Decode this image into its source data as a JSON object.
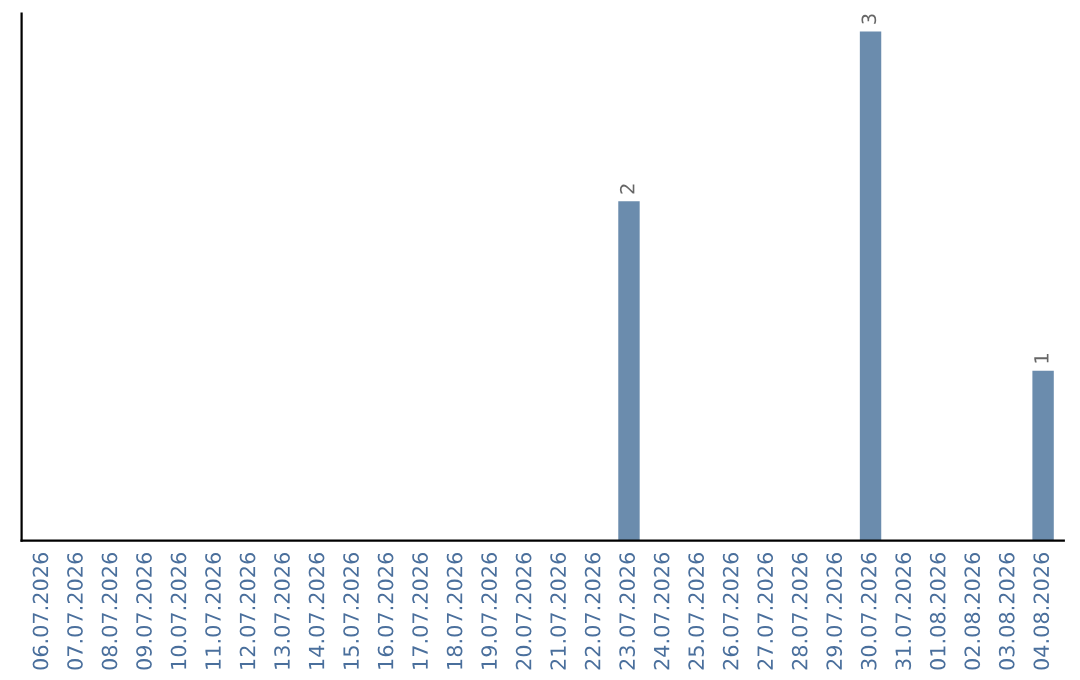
{
  "chart_data": {
    "type": "bar",
    "categories": [
      "06.07.2026",
      "07.07.2026",
      "08.07.2026",
      "09.07.2026",
      "10.07.2026",
      "11.07.2026",
      "12.07.2026",
      "13.07.2026",
      "14.07.2026",
      "15.07.2026",
      "16.07.2026",
      "17.07.2026",
      "18.07.2026",
      "19.07.2026",
      "20.07.2026",
      "21.07.2026",
      "22.07.2026",
      "23.07.2026",
      "24.07.2026",
      "25.07.2026",
      "26.07.2026",
      "27.07.2026",
      "28.07.2026",
      "29.07.2026",
      "30.07.2026",
      "31.07.2026",
      "01.08.2026",
      "02.08.2026",
      "03.08.2026",
      "04.08.2026"
    ],
    "values": [
      null,
      null,
      null,
      null,
      null,
      null,
      null,
      null,
      null,
      null,
      null,
      null,
      null,
      null,
      null,
      null,
      null,
      2,
      null,
      null,
      null,
      null,
      null,
      null,
      3,
      null,
      null,
      null,
      null,
      1
    ],
    "value_labels": [
      null,
      null,
      null,
      null,
      null,
      null,
      null,
      null,
      null,
      null,
      null,
      null,
      null,
      null,
      null,
      null,
      null,
      "2",
      null,
      null,
      null,
      null,
      null,
      null,
      "3",
      null,
      null,
      null,
      null,
      "1"
    ],
    "color": "#6b8cad",
    "tick_labels": "x",
    "grid": false,
    "legend": false
  }
}
